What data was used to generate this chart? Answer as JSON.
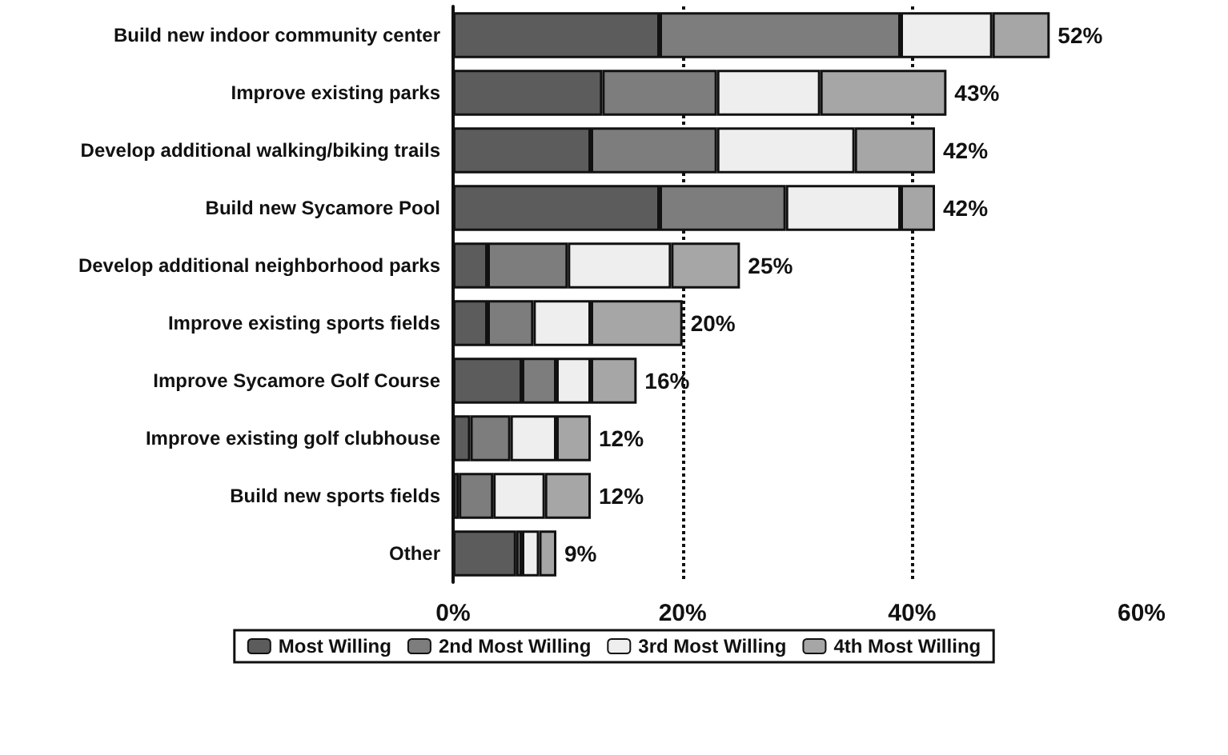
{
  "chart_data": {
    "type": "bar",
    "orientation": "horizontal",
    "stacked": true,
    "categories": [
      "Build new indoor community center",
      "Improve existing parks",
      "Develop additional walking/biking trails",
      "Build new Sycamore Pool",
      "Develop additional neighborhood parks",
      "Improve existing sports fields",
      "Improve Sycamore Golf Course",
      "Improve existing golf clubhouse",
      "Build new sports fields",
      "Other"
    ],
    "series": [
      {
        "name": "Most Willing",
        "color": "#5c5c5c",
        "values": [
          18,
          13,
          12,
          18,
          3,
          3,
          6,
          1.5,
          0.5,
          5.5
        ]
      },
      {
        "name": "2nd Most Willing",
        "color": "#7d7d7d",
        "values": [
          21,
          10,
          11,
          11,
          7,
          4,
          3,
          3.5,
          3,
          0.5
        ]
      },
      {
        "name": "3rd Most Willing",
        "color": "#eeeeee",
        "values": [
          8,
          9,
          12,
          10,
          9,
          5,
          3,
          4,
          4.5,
          1.5
        ]
      },
      {
        "name": "4th Most Willing",
        "color": "#a6a6a6",
        "values": [
          5,
          11,
          7,
          3,
          6,
          8,
          4,
          3,
          4,
          1.5
        ]
      }
    ],
    "totals": [
      "52%",
      "43%",
      "42%",
      "42%",
      "25%",
      "20%",
      "16%",
      "12%",
      "12%",
      "9%"
    ],
    "xlim": [
      0,
      60
    ],
    "xticks": [
      {
        "value": 0,
        "label": "0%"
      },
      {
        "value": 20,
        "label": "20%"
      },
      {
        "value": 40,
        "label": "40%"
      },
      {
        "value": 60,
        "label": "60%"
      }
    ],
    "grid": "x",
    "legend": "bottom"
  }
}
